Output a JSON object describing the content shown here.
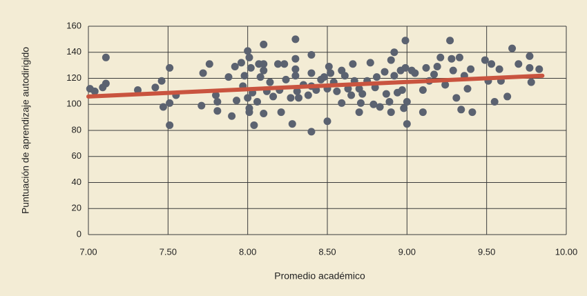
{
  "chart_data": {
    "type": "scatter",
    "x_label": "Promedio académico",
    "y_label": "Puntuación de aprendizaje autodirigido",
    "xlim": [
      7,
      10
    ],
    "ylim": [
      0,
      160
    ],
    "xticks": [
      {
        "value": 7,
        "label": "7.00"
      },
      {
        "value": 7.5,
        "label": "7.50"
      },
      {
        "value": 8,
        "label": "8.00"
      },
      {
        "value": 8.5,
        "label": "8.50"
      },
      {
        "value": 9,
        "label": "9.00"
      },
      {
        "value": 9.5,
        "label": "9.50"
      },
      {
        "value": 10,
        "label": "10.00"
      }
    ],
    "yticks": [
      0,
      20,
      40,
      60,
      80,
      100,
      120,
      140,
      160
    ],
    "grid": true,
    "series": [
      {
        "color": "#5b6270",
        "x": [
          7.01,
          7.04,
          7.09,
          7.11,
          7.11,
          7.31,
          7.42,
          7.46,
          7.47,
          7.51,
          7.51,
          7.51,
          7.55,
          7.71,
          7.72,
          7.76,
          7.8,
          7.81,
          7.81,
          7.88,
          7.9,
          7.92,
          7.93,
          7.96,
          7.97,
          7.98,
          8.0,
          8.0,
          8.01,
          8.01,
          8.01,
          8.02,
          8.03,
          8.04,
          8.06,
          8.07,
          8.08,
          8.1,
          8.1,
          8.1,
          8.1,
          8.12,
          8.14,
          8.16,
          8.19,
          8.2,
          8.21,
          8.23,
          8.24,
          8.27,
          8.28,
          8.3,
          8.3,
          8.3,
          8.3,
          8.31,
          8.32,
          8.35,
          8.38,
          8.4,
          8.4,
          8.4,
          8.4,
          8.43,
          8.46,
          8.48,
          8.5,
          8.5,
          8.51,
          8.52,
          8.54,
          8.56,
          8.59,
          8.59,
          8.61,
          8.63,
          8.65,
          8.66,
          8.67,
          8.7,
          8.7,
          8.71,
          8.72,
          8.75,
          8.77,
          8.79,
          8.8,
          8.81,
          8.83,
          8.86,
          8.87,
          8.89,
          8.9,
          8.9,
          8.92,
          8.92,
          8.94,
          8.96,
          8.97,
          8.98,
          8.99,
          8.99,
          9.0,
          9.0,
          9.03,
          9.05,
          9.1,
          9.1,
          9.12,
          9.14,
          9.17,
          9.19,
          9.21,
          9.24,
          9.27,
          9.28,
          9.29,
          9.31,
          9.33,
          9.34,
          9.36,
          9.38,
          9.4,
          9.41,
          9.49,
          9.51,
          9.53,
          9.55,
          9.58,
          9.59,
          9.63,
          9.66,
          9.7,
          9.77,
          9.77,
          9.78,
          9.83
        ],
        "values": [
          112,
          110,
          113,
          136,
          116,
          111,
          113,
          118,
          98,
          128,
          101,
          84,
          107,
          99,
          124,
          131,
          107,
          102,
          95,
          121,
          91,
          129,
          103,
          132,
          114,
          122,
          141,
          105,
          97,
          94,
          136,
          128,
          109,
          84,
          102,
          131,
          121,
          146,
          131,
          126,
          93,
          110,
          117,
          106,
          131,
          111,
          94,
          131,
          119,
          105,
          85,
          150,
          135,
          127,
          122,
          110,
          105,
          115,
          107,
          138,
          124,
          79,
          114,
          111,
          119,
          121,
          112,
          87,
          129,
          124,
          117,
          110,
          101,
          126,
          122,
          112,
          107,
          131,
          118,
          112,
          94,
          101,
          108,
          118,
          132,
          100,
          113,
          121,
          98,
          125,
          108,
          102,
          134,
          94,
          140,
          122,
          109,
          126,
          111,
          97,
          149,
          128,
          85,
          102,
          126,
          124,
          111,
          94,
          128,
          118,
          123,
          129,
          136,
          115,
          149,
          135,
          126,
          105,
          136,
          96,
          122,
          112,
          127,
          94,
          134,
          118,
          131,
          102,
          127,
          118,
          106,
          143,
          131,
          137,
          128,
          117,
          127
        ]
      }
    ],
    "trendline": {
      "color": "#c9543f",
      "x": [
        7.0,
        9.85
      ],
      "values": [
        106,
        122
      ]
    }
  }
}
